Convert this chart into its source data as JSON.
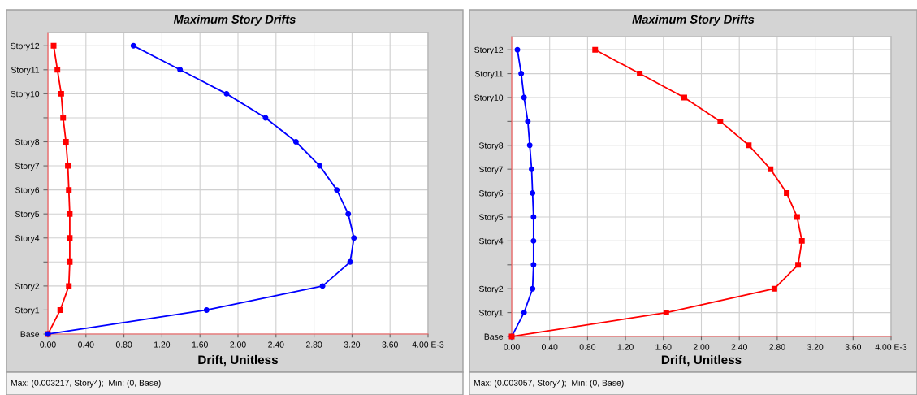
{
  "chart_data": [
    {
      "type": "line",
      "orientation": "horizontal",
      "title": "Maximum Story Drifts",
      "xlabel": "Drift, Unitless",
      "categories": [
        "Story12",
        "Story11",
        "Story10",
        null,
        "Story8",
        "Story7",
        "Story6",
        "Story5",
        "Story4",
        null,
        "Story2",
        "Story1",
        "Base"
      ],
      "series": [
        {
          "color": "#ff0000",
          "marker": "square",
          "values": [
            0.06,
            0.1,
            0.14,
            0.16,
            0.19,
            0.21,
            0.22,
            0.23,
            0.23,
            0.23,
            0.22,
            0.13,
            0
          ]
        },
        {
          "color": "#0000ff",
          "marker": "circle",
          "values": [
            0.9,
            1.39,
            1.88,
            2.29,
            2.61,
            2.86,
            3.04,
            3.16,
            3.22,
            3.18,
            2.89,
            1.67,
            0
          ]
        }
      ],
      "xlim": [
        0,
        4
      ],
      "xticks": [
        {
          "value": 0,
          "label": "0.00"
        },
        {
          "value": 0.4,
          "label": "0.40"
        },
        {
          "value": 0.8,
          "label": "0.80"
        },
        {
          "value": 1.2,
          "label": "1.20"
        },
        {
          "value": 1.6,
          "label": "1.60"
        },
        {
          "value": 2.0,
          "label": "2.00"
        },
        {
          "value": 2.4,
          "label": "2.40"
        },
        {
          "value": 2.8,
          "label": "2.80"
        },
        {
          "value": 3.2,
          "label": "3.20"
        },
        {
          "value": 3.6,
          "label": "3.60"
        },
        {
          "value": 4.0,
          "label": "4.00 E-3"
        }
      ],
      "grid": true,
      "legend": false,
      "annotations": [
        "Max: (0.003217, Story4);  Min: (0, Base)"
      ]
    },
    {
      "type": "line",
      "orientation": "horizontal",
      "title": "Maximum Story Drifts",
      "xlabel": "Drift, Unitless",
      "categories": [
        "Story12",
        "Story11",
        "Story10",
        null,
        "Story8",
        "Story7",
        "Story6",
        "Story5",
        "Story4",
        null,
        "Story2",
        "Story1",
        "Base"
      ],
      "series": [
        {
          "color": "#0000ff",
          "marker": "circle",
          "values": [
            0.06,
            0.1,
            0.13,
            0.17,
            0.19,
            0.21,
            0.22,
            0.23,
            0.23,
            0.23,
            0.22,
            0.13,
            0
          ]
        },
        {
          "color": "#ff0000",
          "marker": "square",
          "values": [
            0.88,
            1.35,
            1.82,
            2.2,
            2.5,
            2.73,
            2.9,
            3.01,
            3.06,
            3.02,
            2.77,
            1.63,
            0
          ]
        }
      ],
      "xlim": [
        0,
        4
      ],
      "xticks": [
        {
          "value": 0,
          "label": "0.00"
        },
        {
          "value": 0.4,
          "label": "0.40"
        },
        {
          "value": 0.8,
          "label": "0.80"
        },
        {
          "value": 1.2,
          "label": "1.20"
        },
        {
          "value": 1.6,
          "label": "1.60"
        },
        {
          "value": 2.0,
          "label": "2.00"
        },
        {
          "value": 2.4,
          "label": "2.40"
        },
        {
          "value": 2.8,
          "label": "2.80"
        },
        {
          "value": 3.2,
          "label": "3.20"
        },
        {
          "value": 3.6,
          "label": "3.60"
        },
        {
          "value": 4.0,
          "label": "4.00 E-3"
        }
      ],
      "grid": true,
      "legend": false,
      "annotations": [
        "Max: (0.003057, Story4);  Min: (0, Base)"
      ]
    }
  ]
}
